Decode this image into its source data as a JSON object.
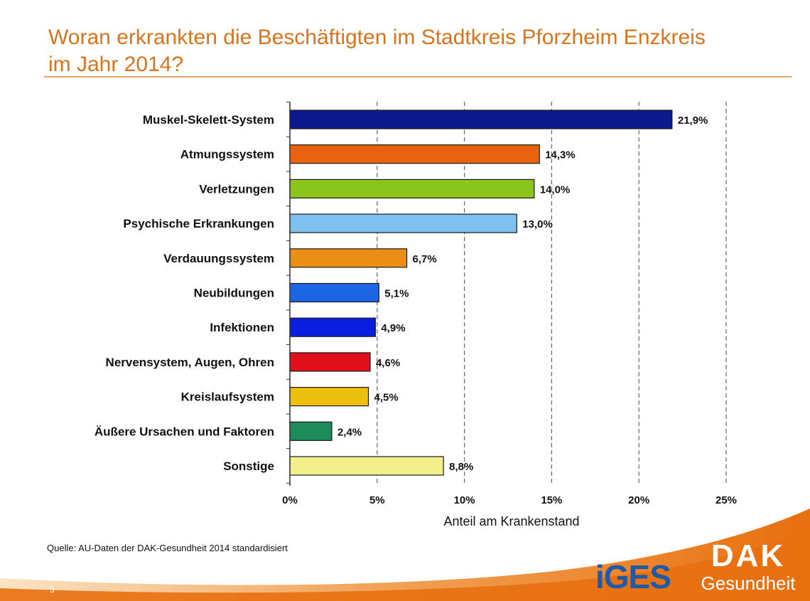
{
  "header": {
    "title_line1": "Woran erkrankten die Beschäftigten im Stadtkreis Pforzheim Enzkreis",
    "title_line2": "im Jahr 2014?"
  },
  "chart_data": {
    "type": "bar",
    "orientation": "horizontal",
    "categories": [
      "Muskel-Skelett-System",
      "Atmungssystem",
      "Verletzungen",
      "Psychische Erkrankungen",
      "Verdauungssystem",
      "Neubildungen",
      "Infektionen",
      "Nervensystem, Augen, Ohren",
      "Kreislaufsystem",
      "Äußere Ursachen und Faktoren",
      "Sonstige"
    ],
    "values": [
      21.9,
      14.3,
      14.0,
      13.0,
      6.7,
      5.1,
      4.9,
      4.6,
      4.5,
      2.4,
      8.8
    ],
    "value_labels": [
      "21,9%",
      "14,3%",
      "14,0%",
      "13,0%",
      "6,7%",
      "5,1%",
      "4,9%",
      "4,6%",
      "4,5%",
      "2,4%",
      "8,8%"
    ],
    "colors": [
      "#0d1a8c",
      "#e8620f",
      "#8cc41e",
      "#7ec0ef",
      "#eb8e16",
      "#1c66e6",
      "#0a1ee0",
      "#e2101a",
      "#ecc00c",
      "#1e8c58",
      "#f2f08a"
    ],
    "xlabel": "Anteil am Krankenstand",
    "xlim": [
      0,
      25
    ],
    "xticks": [
      0,
      5,
      10,
      15,
      20,
      25
    ],
    "xtick_labels": [
      "0%",
      "5%",
      "10%",
      "15%",
      "20%",
      "25%"
    ],
    "grid": "vertical dashed"
  },
  "footer": {
    "source": "Quelle: AU-Daten der DAK-Gesundheit 2014 standardisiert",
    "page_number": "5",
    "logo_iges": "iGES",
    "logo_dak": "DAK",
    "logo_dak_sub": "Gesundheit"
  },
  "theme": {
    "accent": "#d8741c",
    "footer_orange": "#ea7a14"
  }
}
